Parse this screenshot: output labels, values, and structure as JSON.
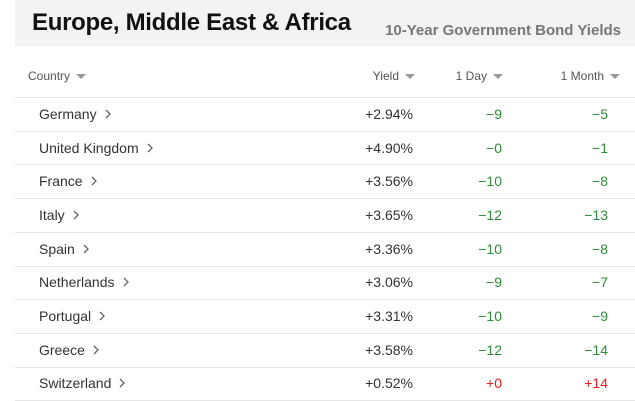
{
  "header": {
    "title": "Europe, Middle East & Africa",
    "subtitle": "10-Year Government Bond Yields"
  },
  "table": {
    "columns": [
      "Country",
      "Yield",
      "1 Day",
      "1 Month"
    ],
    "rows": [
      {
        "country": "Germany",
        "yield": "+2.94%",
        "day": "−9",
        "month": "−5",
        "day_color": "#2f8a3b",
        "month_color": "#2f8a3b"
      },
      {
        "country": "United Kingdom",
        "yield": "+4.90%",
        "day": "−0",
        "month": "−1",
        "day_color": "#2f8a3b",
        "month_color": "#2f8a3b"
      },
      {
        "country": "France",
        "yield": "+3.56%",
        "day": "−10",
        "month": "−8",
        "day_color": "#2f8a3b",
        "month_color": "#2f8a3b"
      },
      {
        "country": "Italy",
        "yield": "+3.65%",
        "day": "−12",
        "month": "−13",
        "day_color": "#2f8a3b",
        "month_color": "#2f8a3b"
      },
      {
        "country": "Spain",
        "yield": "+3.36%",
        "day": "−10",
        "month": "−8",
        "day_color": "#2f8a3b",
        "month_color": "#2f8a3b"
      },
      {
        "country": "Netherlands",
        "yield": "+3.06%",
        "day": "−9",
        "month": "−7",
        "day_color": "#2f8a3b",
        "month_color": "#2f8a3b"
      },
      {
        "country": "Portugal",
        "yield": "+3.31%",
        "day": "−10",
        "month": "−9",
        "day_color": "#2f8a3b",
        "month_color": "#2f8a3b"
      },
      {
        "country": "Greece",
        "yield": "+3.58%",
        "day": "−12",
        "month": "−14",
        "day_color": "#2f8a3b",
        "month_color": "#2f8a3b"
      },
      {
        "country": "Switzerland",
        "yield": "+0.52%",
        "day": "+0",
        "month": "+14",
        "day_color": "#e0201b",
        "month_color": "#e0201b"
      }
    ]
  }
}
